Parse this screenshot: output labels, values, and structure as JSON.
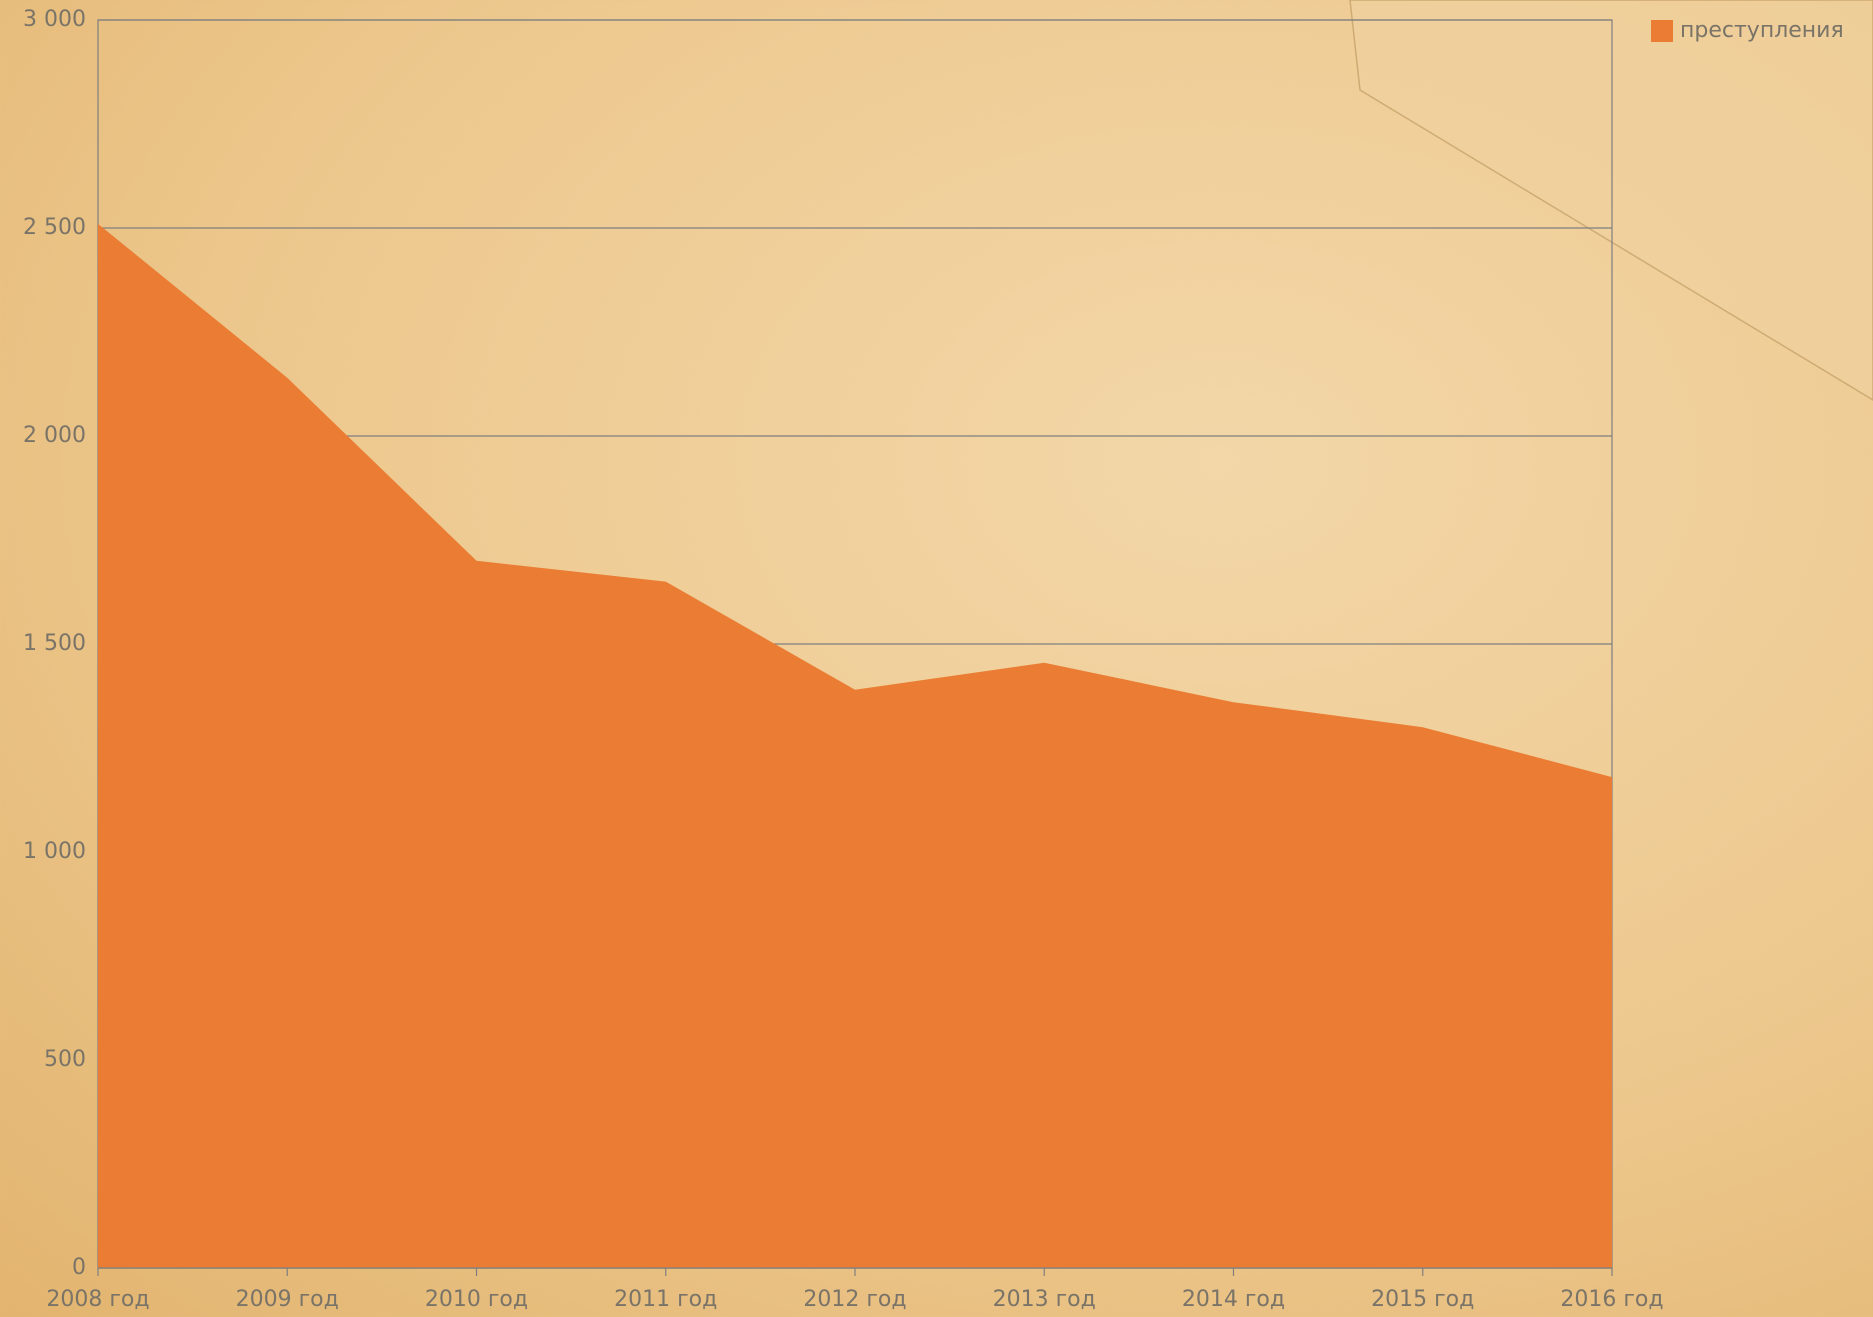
{
  "chart_data": {
    "type": "area",
    "categories": [
      "2008 год",
      "2009 год",
      "2010 год",
      "2011 год",
      "2012 год",
      "2013 год",
      "2014 год",
      "2015 год",
      "2016 год"
    ],
    "series": [
      {
        "name": "преступления",
        "color": "#ea7d33",
        "values": [
          2510,
          2140,
          1700,
          1650,
          1390,
          1455,
          1360,
          1300,
          1180
        ]
      }
    ],
    "ylim": [
      0,
      3000
    ],
    "yticks": [
      0,
      500,
      {
        "value": 1000,
        "label": "1 000"
      },
      {
        "value": 1500,
        "label": "1 500"
      },
      {
        "value": 2000,
        "label": "2 000"
      },
      {
        "value": 2500,
        "label": "2 500"
      },
      {
        "value": 3000,
        "label": "3 000"
      }
    ],
    "grid": true,
    "legend": "top-right"
  }
}
